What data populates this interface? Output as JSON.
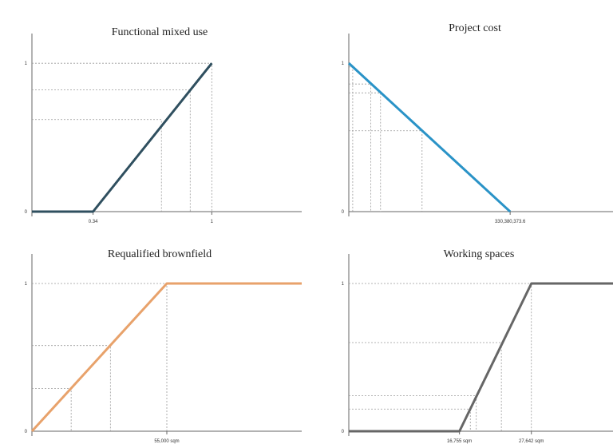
{
  "chart_data": [
    {
      "type": "line",
      "title": "Functional mixed use",
      "color": "#2f4f5f",
      "x": [
        0,
        0.34,
        1
      ],
      "y": [
        0,
        0,
        1
      ],
      "xlim": [
        0,
        1.5
      ],
      "ylim": [
        0,
        1.2
      ],
      "x_tick_labels": [
        {
          "value": 0.34,
          "label": "0.34"
        },
        {
          "value": 1,
          "label": "1"
        }
      ],
      "y_tick_labels": [
        {
          "value": 0,
          "label": "0"
        },
        {
          "value": 1,
          "label": "1"
        }
      ],
      "guides": [
        [
          1,
          1
        ],
        [
          0.88,
          0.82
        ],
        [
          0.72,
          0.62
        ]
      ]
    },
    {
      "type": "line",
      "title": "Project cost",
      "color": "#2a93c7",
      "x": [
        0,
        330380373.6
      ],
      "y": [
        1,
        0
      ],
      "xlim": [
        0,
        541000000
      ],
      "ylim": [
        0,
        1.2
      ],
      "x_tick_labels": [
        {
          "value": 330380373.6,
          "label": "330,380,373.6"
        }
      ],
      "y_tick_labels": [
        {
          "value": 0,
          "label": "0"
        },
        {
          "value": 1,
          "label": "1"
        }
      ],
      "guides": [
        [
          8000000,
          0.975
        ],
        [
          45000000,
          0.86
        ],
        [
          65000000,
          0.8
        ],
        [
          150000000,
          0.545
        ]
      ]
    },
    {
      "type": "line",
      "title": "Requalified brownfield",
      "color": "#e8a26b",
      "x": [
        0,
        55000,
        110000
      ],
      "y": [
        0,
        1,
        1
      ],
      "xlim": [
        0,
        110000
      ],
      "ylim": [
        0,
        1.2
      ],
      "x_tick_labels": [
        {
          "value": 55000,
          "label": "55,000 sqm"
        }
      ],
      "y_tick_labels": [
        {
          "value": 0,
          "label": "0"
        },
        {
          "value": 1,
          "label": "1"
        }
      ],
      "guides": [
        [
          55000,
          1
        ],
        [
          32000,
          0.58
        ],
        [
          16000,
          0.29
        ]
      ]
    },
    {
      "type": "line",
      "title": "Working spaces",
      "color": "#666666",
      "x": [
        0,
        16755,
        27642,
        40000
      ],
      "y": [
        0,
        0,
        1,
        1
      ],
      "xlim": [
        0,
        40000
      ],
      "ylim": [
        0,
        1.2
      ],
      "x_tick_labels": [
        {
          "value": 16755,
          "label": "16,755 sqm"
        },
        {
          "value": 27642,
          "label": "27,642 sqm"
        }
      ],
      "y_tick_labels": [
        {
          "value": 0,
          "label": "0"
        },
        {
          "value": 1,
          "label": "1"
        }
      ],
      "guides": [
        [
          27642,
          1
        ],
        [
          23100,
          0.6
        ],
        [
          19300,
          0.24
        ],
        [
          18400,
          0.15
        ]
      ]
    }
  ]
}
